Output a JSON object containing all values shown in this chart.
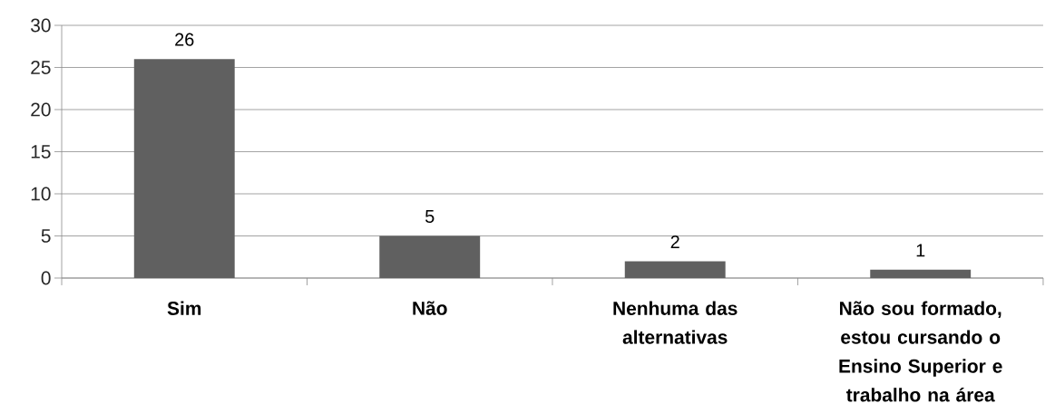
{
  "chart_data": {
    "type": "bar",
    "categories": [
      "Sim",
      "Não",
      "Nenhuma das alternativas",
      "Não sou formado, estou cursando o Ensino Superior e trabalho na área"
    ],
    "values": [
      26,
      5,
      2,
      1
    ],
    "color": "#606060",
    "ylim": [
      0,
      30
    ],
    "yticks": [
      0,
      5,
      10,
      15,
      20,
      25,
      30
    ],
    "grid": "y",
    "data_labels": true
  }
}
